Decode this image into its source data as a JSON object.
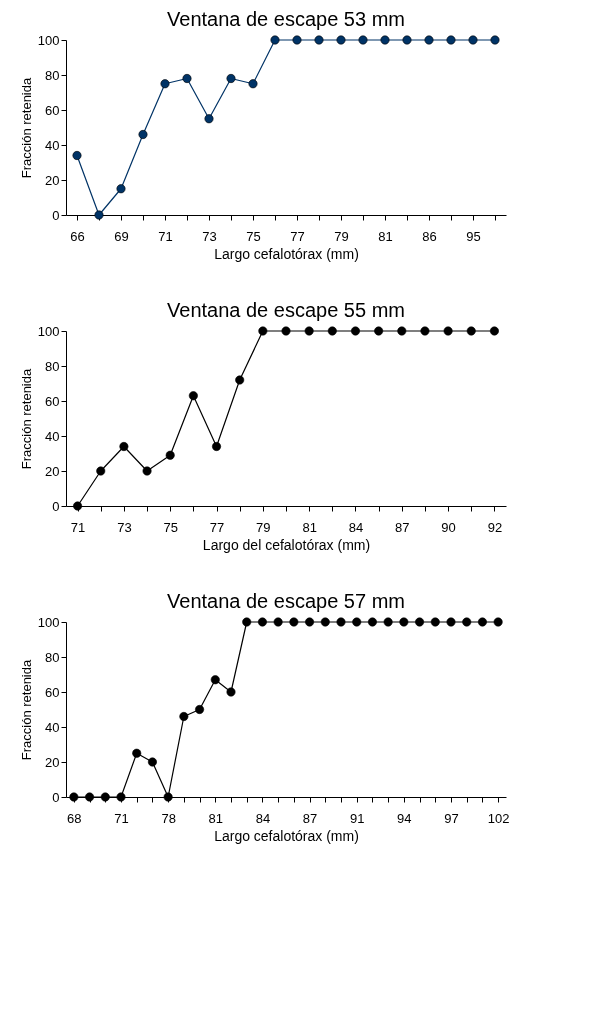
{
  "chart_data": [
    {
      "type": "line",
      "title": "Ventana de escape 53 mm",
      "xlabel": "Largo cefalotórax (mm)",
      "ylabel": "Fracción retenida",
      "categories": [
        "66",
        null,
        "69",
        null,
        "71",
        null,
        "73",
        null,
        "75",
        null,
        "77",
        null,
        "79",
        null,
        "81",
        null,
        "86",
        null,
        "95",
        null
      ],
      "series": [
        {
          "color": "#003366",
          "values": [
            34,
            0,
            15,
            46,
            75,
            78,
            55,
            78,
            75,
            100,
            100,
            100,
            100,
            100,
            100,
            100,
            100,
            100,
            100,
            100
          ]
        }
      ],
      "ylim": [
        0,
        100
      ],
      "yticks": [
        0,
        20,
        40,
        60,
        80,
        100
      ],
      "marker": "circle",
      "line_style": "solid"
    },
    {
      "type": "line",
      "title": "Ventana de escape 55 mm",
      "xlabel": "Largo del cefalotórax (mm)",
      "ylabel": "Fracción retenida",
      "categories": [
        "71",
        null,
        "73",
        null,
        "75",
        null,
        "77",
        null,
        "79",
        null,
        "81",
        null,
        "84",
        null,
        "87",
        null,
        "90",
        null,
        "92"
      ],
      "series": [
        {
          "color": "#000000",
          "values": [
            0,
            20,
            34,
            20,
            29,
            63,
            34,
            72,
            100,
            100,
            100,
            100,
            100,
            100,
            100,
            100,
            100,
            100,
            100
          ]
        }
      ],
      "ylim": [
        0,
        100
      ],
      "yticks": [
        0,
        20,
        40,
        60,
        80,
        100
      ],
      "marker": "circle",
      "line_style": "solid"
    },
    {
      "type": "line",
      "title": "Ventana de escape 57 mm",
      "xlabel": "Largo cefalotórax (mm)",
      "ylabel": "Fracción retenida",
      "categories": [
        "68",
        null,
        null,
        "71",
        null,
        null,
        "78",
        null,
        null,
        "81",
        null,
        null,
        "84",
        null,
        null,
        "87",
        null,
        null,
        "91",
        null,
        null,
        "94",
        null,
        null,
        "97",
        null,
        null,
        "102"
      ],
      "series": [
        {
          "color": "#000000",
          "values": [
            0,
            0,
            0,
            0,
            25,
            20,
            0,
            46,
            50,
            67,
            60,
            100,
            100,
            100,
            100,
            100,
            100,
            100,
            100,
            100,
            100,
            100,
            100,
            100,
            100,
            100,
            100,
            100
          ]
        }
      ],
      "ylim": [
        0,
        100
      ],
      "yticks": [
        0,
        20,
        40,
        60,
        80,
        100
      ],
      "marker": "circle",
      "line_style": "solid"
    }
  ]
}
